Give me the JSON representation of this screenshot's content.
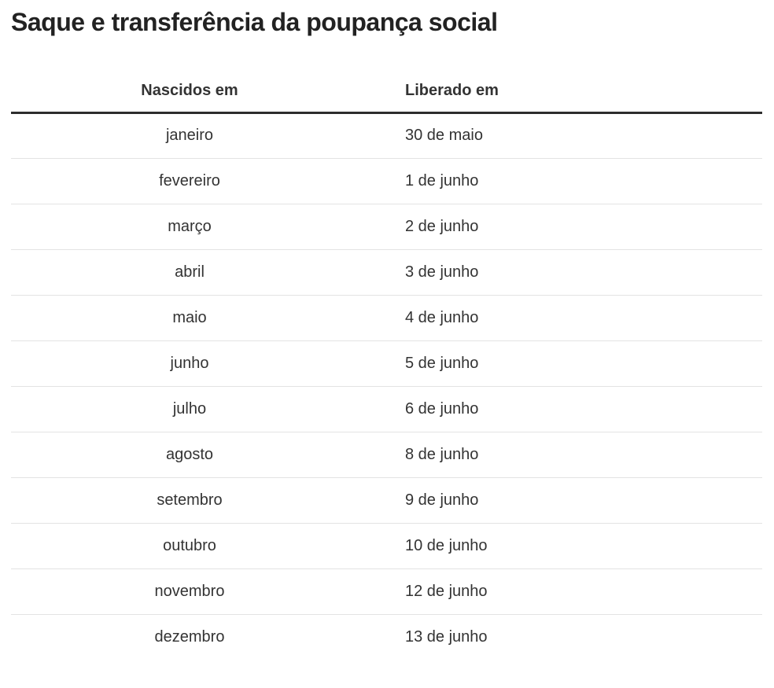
{
  "title": "Saque e transferência da poupança social",
  "table": {
    "columns": [
      "Nascidos em",
      "Liberado em"
    ],
    "rows": [
      {
        "month": "janeiro",
        "release": "30 de maio"
      },
      {
        "month": "fevereiro",
        "release": "1 de junho"
      },
      {
        "month": "março",
        "release": "2 de junho"
      },
      {
        "month": "abril",
        "release": "3 de junho"
      },
      {
        "month": "maio",
        "release": "4 de junho"
      },
      {
        "month": "junho",
        "release": "5 de junho"
      },
      {
        "month": "julho",
        "release": "6 de junho"
      },
      {
        "month": "agosto",
        "release": "8 de junho"
      },
      {
        "month": "setembro",
        "release": "9 de junho"
      },
      {
        "month": "outubro",
        "release": "10 de junho"
      },
      {
        "month": "novembro",
        "release": "12 de junho"
      },
      {
        "month": "dezembro",
        "release": "13 de junho"
      }
    ]
  },
  "colors": {
    "background": "#ffffff",
    "title_text": "#222222",
    "header_text": "#333333",
    "body_text": "#333333",
    "header_rule": "#2d2d2d",
    "row_divider": "#e3e3e3"
  },
  "chart_data": {
    "type": "table",
    "title": "Saque e transferência da poupança social",
    "columns": [
      "Nascidos em",
      "Liberado em"
    ],
    "rows": [
      [
        "janeiro",
        "30 de maio"
      ],
      [
        "fevereiro",
        "1 de junho"
      ],
      [
        "março",
        "2 de junho"
      ],
      [
        "abril",
        "3 de junho"
      ],
      [
        "maio",
        "4 de junho"
      ],
      [
        "junho",
        "5 de junho"
      ],
      [
        "julho",
        "6 de junho"
      ],
      [
        "agosto",
        "8 de junho"
      ],
      [
        "setembro",
        "9 de junho"
      ],
      [
        "outubro",
        "10 de junho"
      ],
      [
        "novembro",
        "12 de junho"
      ],
      [
        "dezembro",
        "13 de junho"
      ]
    ],
    "layout": {
      "header_alignment": [
        "center",
        "left"
      ],
      "cell_alignment": [
        "center",
        "left"
      ],
      "header_rule": "thick-dark",
      "row_divider": "thin-light-gray"
    }
  }
}
